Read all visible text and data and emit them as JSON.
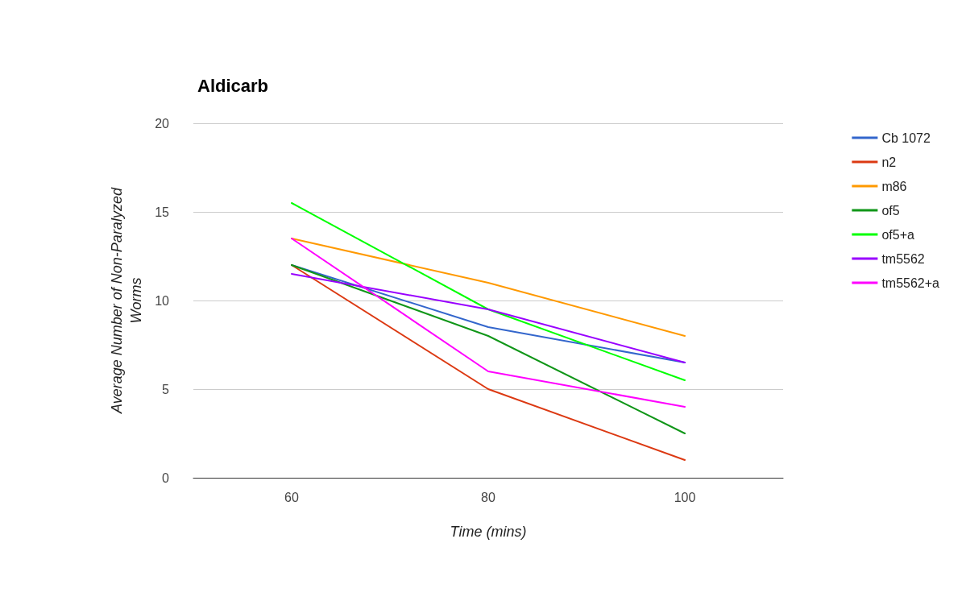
{
  "chart_data": {
    "type": "line",
    "title": "Aldicarb",
    "xlabel": "Time (mins)",
    "ylabel": "Average Number of Non-Paralyzed\nWorms",
    "categories": [
      "60",
      "80",
      "100"
    ],
    "ylim": [
      0,
      20
    ],
    "yticks": [
      0,
      5,
      10,
      15,
      20
    ],
    "grid": "y",
    "legend": "right",
    "marker": "none",
    "line_style": "solid",
    "series": [
      {
        "name": "Cb 1072",
        "color": "#3366cc",
        "values": [
          12,
          8.5,
          6.5
        ]
      },
      {
        "name": "n2",
        "color": "#dc3912",
        "values": [
          12,
          5,
          1
        ]
      },
      {
        "name": "m86",
        "color": "#ff9900",
        "values": [
          13.5,
          11,
          8
        ]
      },
      {
        "name": "of5",
        "color": "#109618",
        "values": [
          12,
          8,
          2.5
        ]
      },
      {
        "name": "of5+a",
        "color": "#00ff00",
        "values": [
          15.5,
          9.5,
          5.5
        ]
      },
      {
        "name": "tm5562",
        "color": "#9900ff",
        "values": [
          11.5,
          9.5,
          6.5
        ]
      },
      {
        "name": "tm5562+a",
        "color": "#ff00ff",
        "values": [
          13.5,
          6,
          4
        ]
      }
    ]
  }
}
